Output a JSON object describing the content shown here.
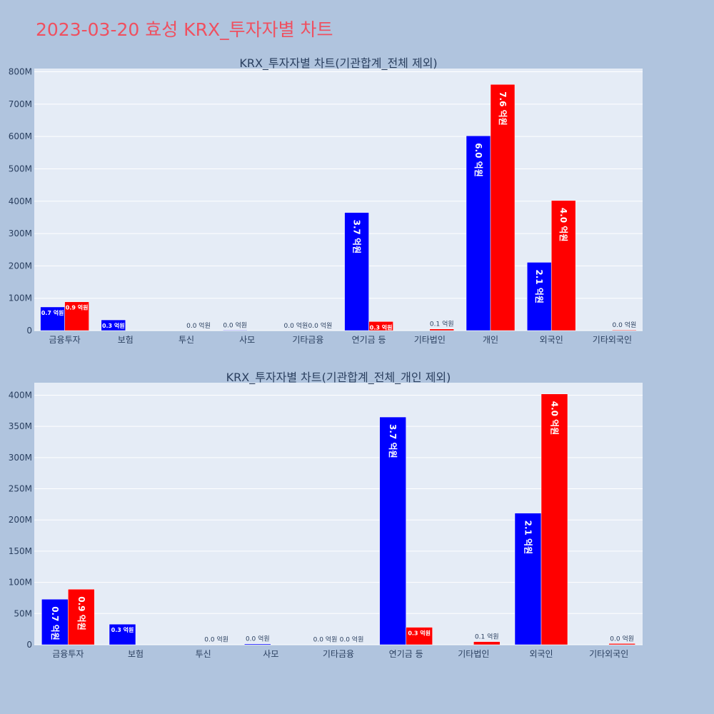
{
  "title": "2023-03-20 효성 KRX_투자자별 차트",
  "colors": {
    "buy": "#0000ff",
    "sell": "#ff0000",
    "plot_bg": "#e5ecf6",
    "page_bg": "#b0c4de",
    "title": "#ef5060"
  },
  "chart_data": [
    {
      "type": "bar",
      "title": "KRX_투자자별 차트(기관합계_전체 제외)",
      "categories": [
        "금융투자",
        "보험",
        "투신",
        "사모",
        "기타금융",
        "연기금 등",
        "기타법인",
        "개인",
        "외국인",
        "기타외국인"
      ],
      "series": [
        {
          "color": "#0000ff",
          "values": [
            73000000,
            33000000,
            0,
            1500000,
            500000,
            365000000,
            0,
            602000000,
            211000000,
            0
          ],
          "labels": [
            "0.7 억원",
            "0.3 억원",
            "",
            "0.0 억원",
            "0.0 억원",
            "3.7 억원",
            "",
            "6.0 억원",
            "2.1 억원",
            ""
          ]
        },
        {
          "color": "#ff0000",
          "values": [
            89000000,
            0,
            500000,
            0,
            500000,
            28000000,
            5000000,
            761000000,
            402000000,
            2000000
          ],
          "labels": [
            "0.9 억원",
            "",
            "0.0 억원",
            "",
            "0.0 억원",
            "0.3 억원",
            "0.1 억원",
            "7.6 억원",
            "4.0 억원",
            "0.0 억원"
          ]
        }
      ],
      "ylim": [
        0,
        810000000
      ],
      "yticks": [
        0,
        100000000,
        200000000,
        300000000,
        400000000,
        500000000,
        600000000,
        700000000,
        800000000
      ],
      "ytick_labels": [
        "0",
        "100M",
        "200M",
        "300M",
        "400M",
        "500M",
        "600M",
        "700M",
        "800M"
      ],
      "grid": true,
      "legend": "none"
    },
    {
      "type": "bar",
      "title": "KRX_투자자별 차트(기관합계_전체_개인 제외)",
      "categories": [
        "금융투자",
        "보험",
        "투신",
        "사모",
        "기타금융",
        "연기금 등",
        "기타법인",
        "외국인",
        "기타외국인"
      ],
      "series": [
        {
          "color": "#0000ff",
          "values": [
            73000000,
            33000000,
            0,
            1500000,
            500000,
            365000000,
            0,
            211000000,
            0
          ],
          "labels": [
            "0.7 억원",
            "0.3 억원",
            "",
            "0.0 억원",
            "0.0 억원",
            "3.7 억원",
            "",
            "2.1 억원",
            ""
          ]
        },
        {
          "color": "#ff0000",
          "values": [
            89000000,
            0,
            500000,
            0,
            500000,
            28000000,
            5000000,
            402000000,
            2000000
          ],
          "labels": [
            "0.9 억원",
            "",
            "0.0 억원",
            "",
            "0.0 억원",
            "0.3 억원",
            "0.1 억원",
            "4.0 억원",
            "0.0 억원"
          ]
        }
      ],
      "ylim": [
        0,
        420000000
      ],
      "yticks": [
        0,
        50000000,
        100000000,
        150000000,
        200000000,
        250000000,
        300000000,
        350000000,
        400000000
      ],
      "ytick_labels": [
        "0",
        "50M",
        "100M",
        "150M",
        "200M",
        "250M",
        "300M",
        "350M",
        "400M"
      ],
      "grid": true,
      "legend": "none"
    }
  ]
}
